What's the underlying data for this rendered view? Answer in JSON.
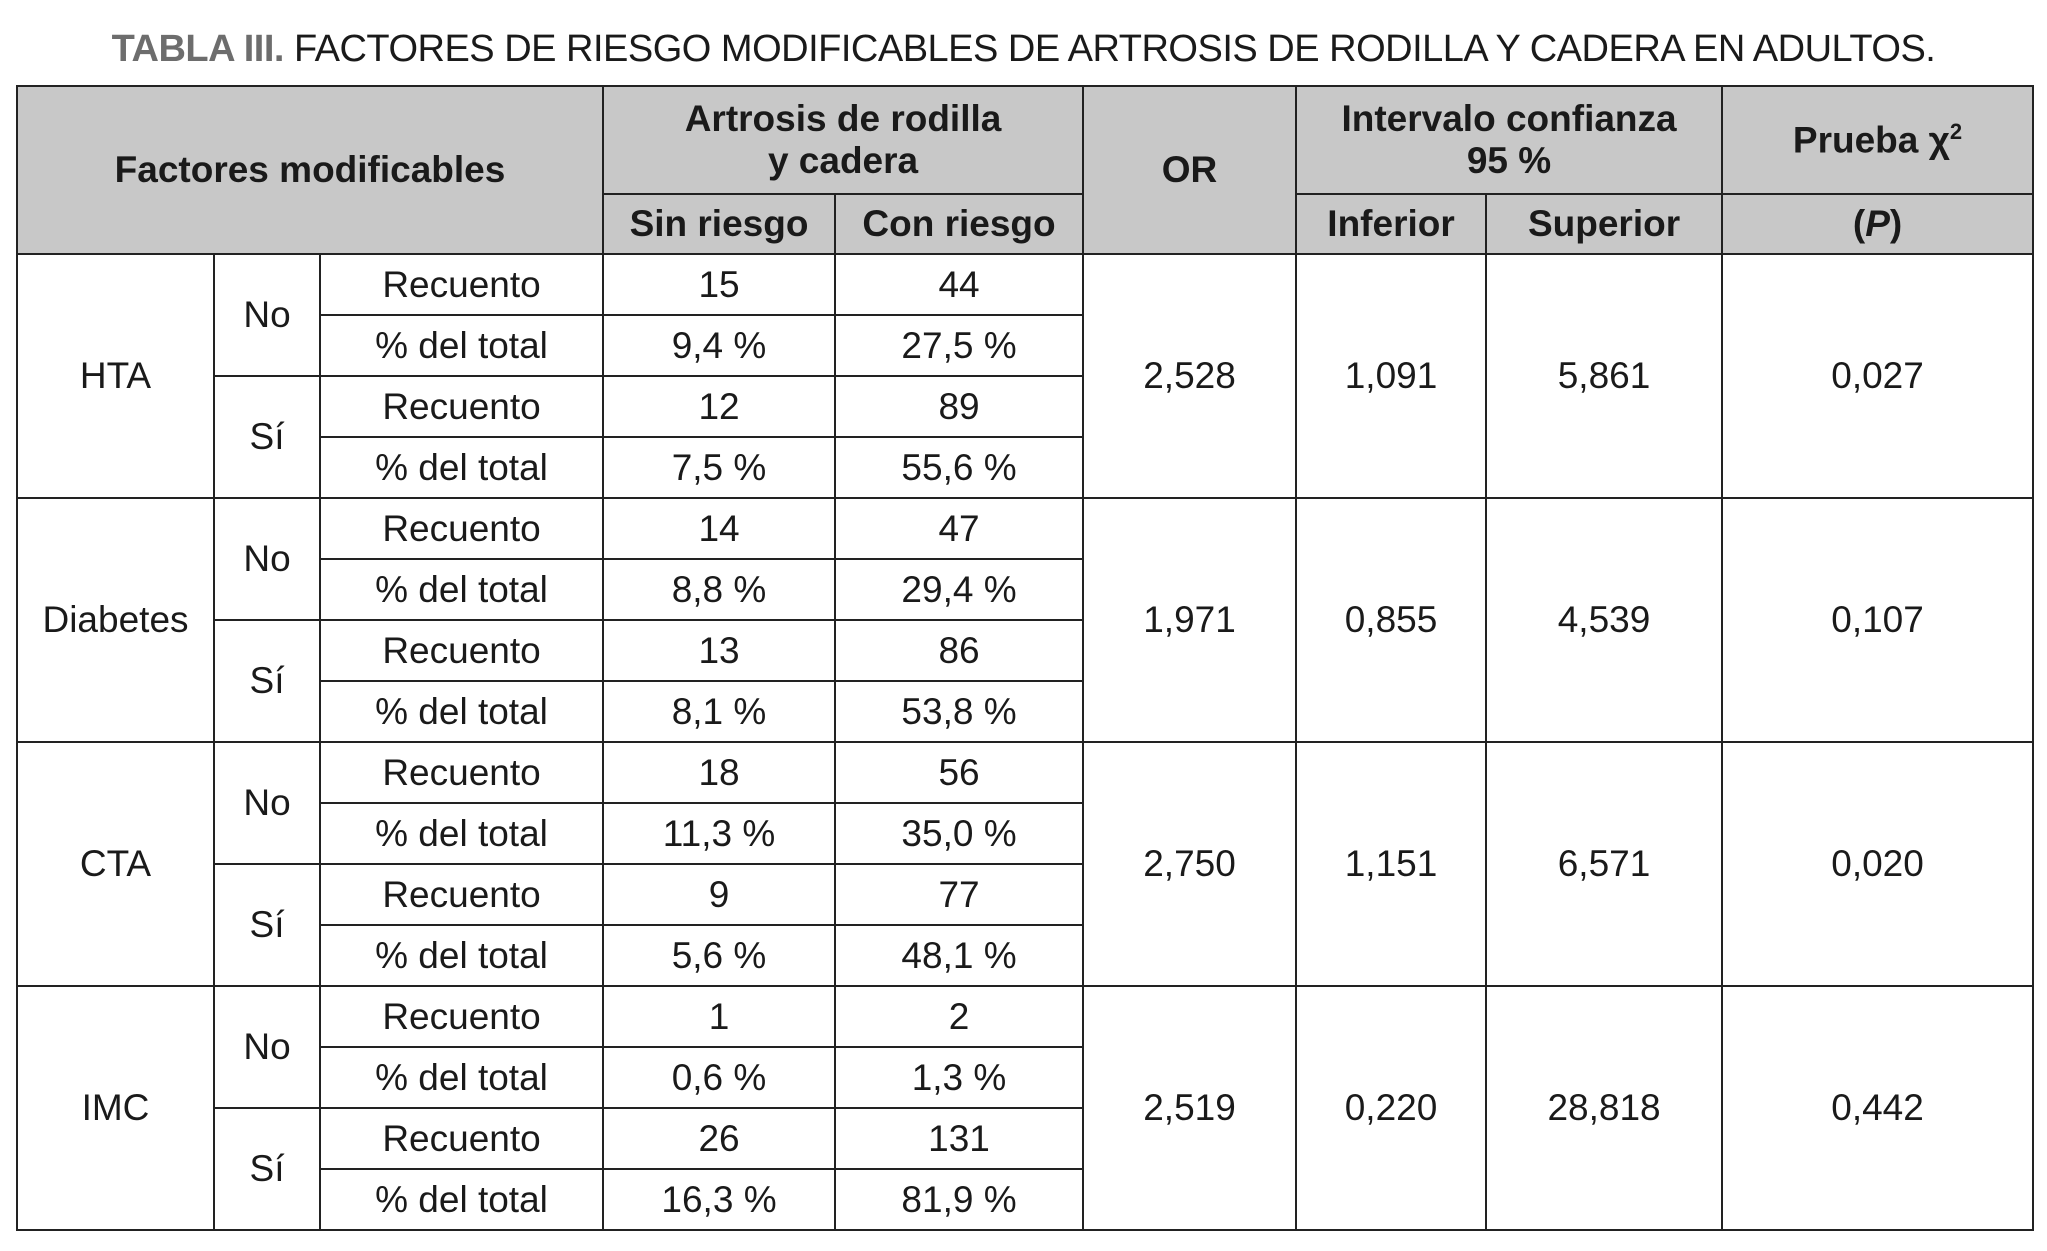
{
  "title": {
    "label": "TABLA III.",
    "text": "FACTORES DE RIESGO MODIFICABLES DE ARTROSIS DE RODILLA Y CADERA EN ADULTOS."
  },
  "headers": {
    "factores": "Factores modificables",
    "artrosis_l1": "Artrosis de rodilla",
    "artrosis_l2": "y cadera",
    "sin_riesgo": "Sin riesgo",
    "con_riesgo": "Con riesgo",
    "or": "OR",
    "ic_l1": "Intervalo confianza",
    "ic_l2": "95 %",
    "inferior": "Inferior",
    "superior": "Superior",
    "prueba": "Prueba χ",
    "prueba_sup": "2",
    "p": "(P)"
  },
  "groups": [
    {
      "factor": "HTA",
      "or": "2,528",
      "inferior": "1,091",
      "superior": "5,861",
      "p": "0,027",
      "levels": [
        {
          "label": "No",
          "rows": [
            {
              "stat": "Recuento",
              "sin": "15",
              "con": "44"
            },
            {
              "stat": "% del total",
              "sin": "9,4 %",
              "con": "27,5 %"
            }
          ]
        },
        {
          "label": "Sí",
          "rows": [
            {
              "stat": "Recuento",
              "sin": "12",
              "con": "89"
            },
            {
              "stat": "% del total",
              "sin": "7,5 %",
              "con": "55,6 %"
            }
          ]
        }
      ]
    },
    {
      "factor": "Diabetes",
      "or": "1,971",
      "inferior": "0,855",
      "superior": "4,539",
      "p": "0,107",
      "levels": [
        {
          "label": "No",
          "rows": [
            {
              "stat": "Recuento",
              "sin": "14",
              "con": "47"
            },
            {
              "stat": "% del total",
              "sin": "8,8 %",
              "con": "29,4 %"
            }
          ]
        },
        {
          "label": "Sí",
          "rows": [
            {
              "stat": "Recuento",
              "sin": "13",
              "con": "86"
            },
            {
              "stat": "% del total",
              "sin": "8,1 %",
              "con": "53,8 %"
            }
          ]
        }
      ]
    },
    {
      "factor": "CTA",
      "or": "2,750",
      "inferior": "1,151",
      "superior": "6,571",
      "p": "0,020",
      "levels": [
        {
          "label": "No",
          "rows": [
            {
              "stat": "Recuento",
              "sin": "18",
              "con": "56"
            },
            {
              "stat": "% del total",
              "sin": "11,3 %",
              "con": "35,0 %"
            }
          ]
        },
        {
          "label": "Sí",
          "rows": [
            {
              "stat": "Recuento",
              "sin": "9",
              "con": "77"
            },
            {
              "stat": "% del total",
              "sin": "5,6 %",
              "con": "48,1 %"
            }
          ]
        }
      ]
    },
    {
      "factor": "IMC",
      "or": "2,519",
      "inferior": "0,220",
      "superior": "28,818",
      "p": "0,442",
      "levels": [
        {
          "label": "No",
          "rows": [
            {
              "stat": "Recuento",
              "sin": "1",
              "con": "2"
            },
            {
              "stat": "% del total",
              "sin": "0,6 %",
              "con": "1,3 %"
            }
          ]
        },
        {
          "label": "Sí",
          "rows": [
            {
              "stat": "Recuento",
              "sin": "26",
              "con": "131"
            },
            {
              "stat": "% del total",
              "sin": "16,3 %",
              "con": "81,9 %"
            }
          ]
        }
      ]
    }
  ]
}
